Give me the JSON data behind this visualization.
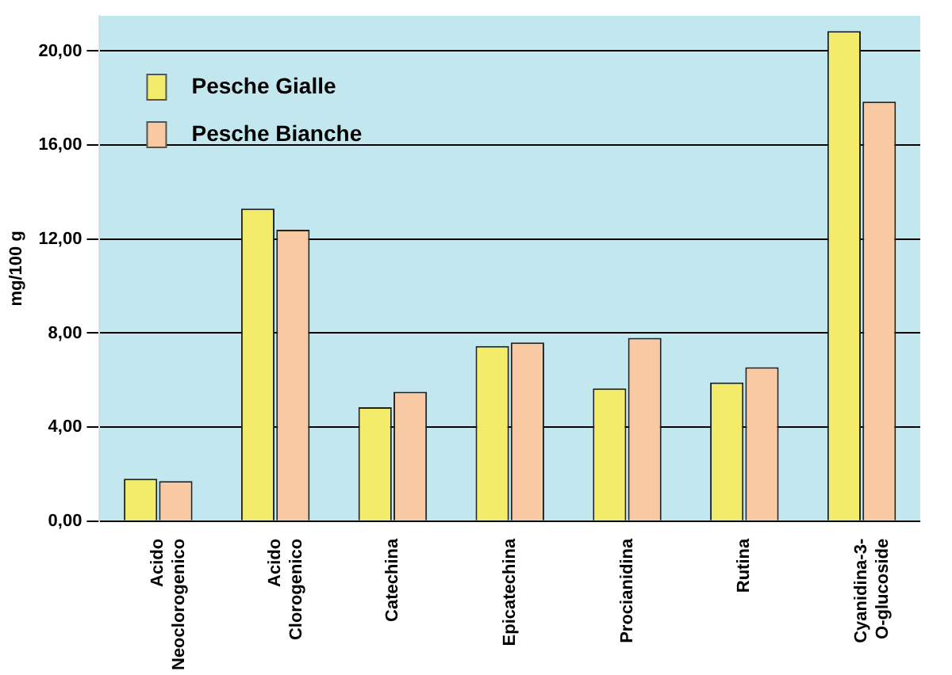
{
  "chart_data": {
    "type": "bar",
    "ylabel": "mg/100 g",
    "categories": [
      "Acido Neoclorogenico",
      "Acido Clorogenico",
      "Catechina",
      "Epicatechina",
      "Procianidina",
      "Rutina",
      "Cyanidina-3-O-glucoside"
    ],
    "series": [
      {
        "name": "Pesche Gialle",
        "color": "#f2ec6a",
        "values": [
          1.8,
          13.3,
          4.85,
          7.45,
          5.65,
          5.9,
          20.85
        ]
      },
      {
        "name": "Pesche Bianche",
        "color": "#f9c9a4",
        "values": [
          1.7,
          12.4,
          5.5,
          7.6,
          7.8,
          6.55,
          17.85
        ]
      }
    ],
    "ylim": [
      0,
      21.5
    ],
    "yticks": [
      {
        "value": 0,
        "label": "0,00"
      },
      {
        "value": 4,
        "label": "4,00"
      },
      {
        "value": 8,
        "label": "8,00"
      },
      {
        "value": 12,
        "label": "12,00"
      },
      {
        "value": 16,
        "label": "16,00"
      },
      {
        "value": 20,
        "label": "20,00"
      }
    ],
    "grid": "y",
    "legend": "top left"
  }
}
